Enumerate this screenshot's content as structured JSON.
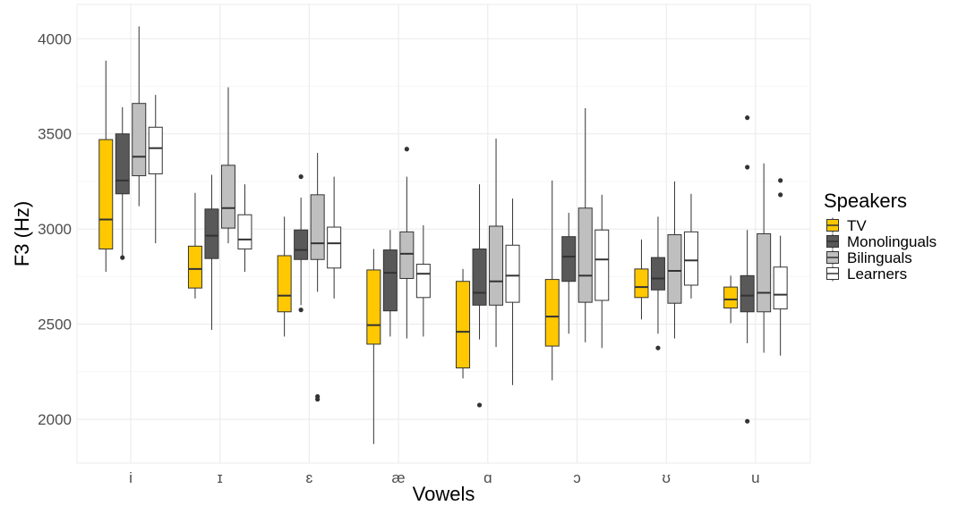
{
  "chart_data": {
    "type": "boxplot",
    "xlabel": "Vowels",
    "ylabel": "F3 (Hz)",
    "ylim": [
      1770,
      4180
    ],
    "yticks": [
      2000,
      2500,
      3000,
      3500,
      4000
    ],
    "grid": true,
    "legend": {
      "title": "Speakers",
      "placement": "right",
      "entries": [
        "TV",
        "Monolinguals",
        "Bilinguals",
        "Learners"
      ]
    },
    "colors": {
      "TV": "#ffc800",
      "Monolinguals": "#595959",
      "Bilinguals": "#bfbfbf",
      "Learners": "#ffffff",
      "grid": "#ebebeb",
      "outline": "#333333"
    },
    "categories": [
      "i",
      "ɪ",
      "ɛ",
      "æ",
      "ɑ",
      "ɔ",
      "ʊ",
      "u"
    ],
    "series": [
      {
        "name": "TV",
        "boxes": [
          {
            "lo": 2775,
            "q1": 2895,
            "med": 3050,
            "q3": 3470,
            "hi": 3885,
            "outliers": []
          },
          {
            "lo": 2635,
            "q1": 2690,
            "med": 2790,
            "q3": 2910,
            "hi": 3190,
            "outliers": []
          },
          {
            "lo": 2435,
            "q1": 2565,
            "med": 2650,
            "q3": 2860,
            "hi": 3065,
            "outliers": []
          },
          {
            "lo": 1870,
            "q1": 2395,
            "med": 2495,
            "q3": 2785,
            "hi": 2895,
            "outliers": []
          },
          {
            "lo": 2215,
            "q1": 2270,
            "med": 2460,
            "q3": 2725,
            "hi": 2790,
            "outliers": []
          },
          {
            "lo": 2205,
            "q1": 2385,
            "med": 2540,
            "q3": 2735,
            "hi": 3255,
            "outliers": []
          },
          {
            "lo": 2525,
            "q1": 2640,
            "med": 2695,
            "q3": 2790,
            "hi": 2945,
            "outliers": []
          },
          {
            "lo": 2505,
            "q1": 2585,
            "med": 2630,
            "q3": 2695,
            "hi": 2755,
            "outliers": []
          }
        ]
      },
      {
        "name": "Monolinguals",
        "boxes": [
          {
            "lo": 2855,
            "q1": 3185,
            "med": 3255,
            "q3": 3500,
            "hi": 3640,
            "outliers": [
              2850
            ]
          },
          {
            "lo": 2470,
            "q1": 2845,
            "med": 2965,
            "q3": 3105,
            "hi": 3285,
            "outliers": []
          },
          {
            "lo": 2600,
            "q1": 2840,
            "med": 2890,
            "q3": 2995,
            "hi": 3165,
            "outliers": [
              3275,
              2575
            ]
          },
          {
            "lo": 2435,
            "q1": 2570,
            "med": 2770,
            "q3": 2890,
            "hi": 2995,
            "outliers": []
          },
          {
            "lo": 2420,
            "q1": 2600,
            "med": 2665,
            "q3": 2895,
            "hi": 3235,
            "outliers": [
              2075
            ]
          },
          {
            "lo": 2450,
            "q1": 2725,
            "med": 2855,
            "q3": 2960,
            "hi": 3085,
            "outliers": []
          },
          {
            "lo": 2450,
            "q1": 2680,
            "med": 2740,
            "q3": 2850,
            "hi": 3065,
            "outliers": [
              2375
            ]
          },
          {
            "lo": 2400,
            "q1": 2565,
            "med": 2650,
            "q3": 2755,
            "hi": 2995,
            "outliers": [
              3585,
              3325,
              1990
            ]
          }
        ]
      },
      {
        "name": "Bilinguals",
        "boxes": [
          {
            "lo": 3120,
            "q1": 3280,
            "med": 3380,
            "q3": 3660,
            "hi": 4065,
            "outliers": []
          },
          {
            "lo": 2925,
            "q1": 3005,
            "med": 3110,
            "q3": 3335,
            "hi": 3745,
            "outliers": []
          },
          {
            "lo": 2670,
            "q1": 2840,
            "med": 2925,
            "q3": 3180,
            "hi": 3400,
            "outliers": [
              2120,
              2105
            ]
          },
          {
            "lo": 2425,
            "q1": 2740,
            "med": 2870,
            "q3": 2985,
            "hi": 3275,
            "outliers": [
              3420
            ]
          },
          {
            "lo": 2380,
            "q1": 2600,
            "med": 2725,
            "q3": 3015,
            "hi": 3475,
            "outliers": []
          },
          {
            "lo": 2405,
            "q1": 2615,
            "med": 2755,
            "q3": 3110,
            "hi": 3635,
            "outliers": []
          },
          {
            "lo": 2425,
            "q1": 2610,
            "med": 2780,
            "q3": 2970,
            "hi": 3250,
            "outliers": []
          },
          {
            "lo": 2350,
            "q1": 2565,
            "med": 2665,
            "q3": 2975,
            "hi": 3345,
            "outliers": []
          }
        ]
      },
      {
        "name": "Learners",
        "boxes": [
          {
            "lo": 2925,
            "q1": 3290,
            "med": 3425,
            "q3": 3535,
            "hi": 3705,
            "outliers": []
          },
          {
            "lo": 2775,
            "q1": 2895,
            "med": 2945,
            "q3": 3075,
            "hi": 3235,
            "outliers": []
          },
          {
            "lo": 2635,
            "q1": 2795,
            "med": 2925,
            "q3": 3010,
            "hi": 3275,
            "outliers": []
          },
          {
            "lo": 2435,
            "q1": 2640,
            "med": 2765,
            "q3": 2815,
            "hi": 3020,
            "outliers": []
          },
          {
            "lo": 2180,
            "q1": 2615,
            "med": 2755,
            "q3": 2915,
            "hi": 3160,
            "outliers": []
          },
          {
            "lo": 2375,
            "q1": 2625,
            "med": 2840,
            "q3": 2995,
            "hi": 3180,
            "outliers": []
          },
          {
            "lo": 2635,
            "q1": 2705,
            "med": 2835,
            "q3": 2985,
            "hi": 3185,
            "outliers": []
          },
          {
            "lo": 2335,
            "q1": 2580,
            "med": 2655,
            "q3": 2800,
            "hi": 2965,
            "outliers": [
              3255,
              3180
            ]
          }
        ]
      }
    ]
  }
}
